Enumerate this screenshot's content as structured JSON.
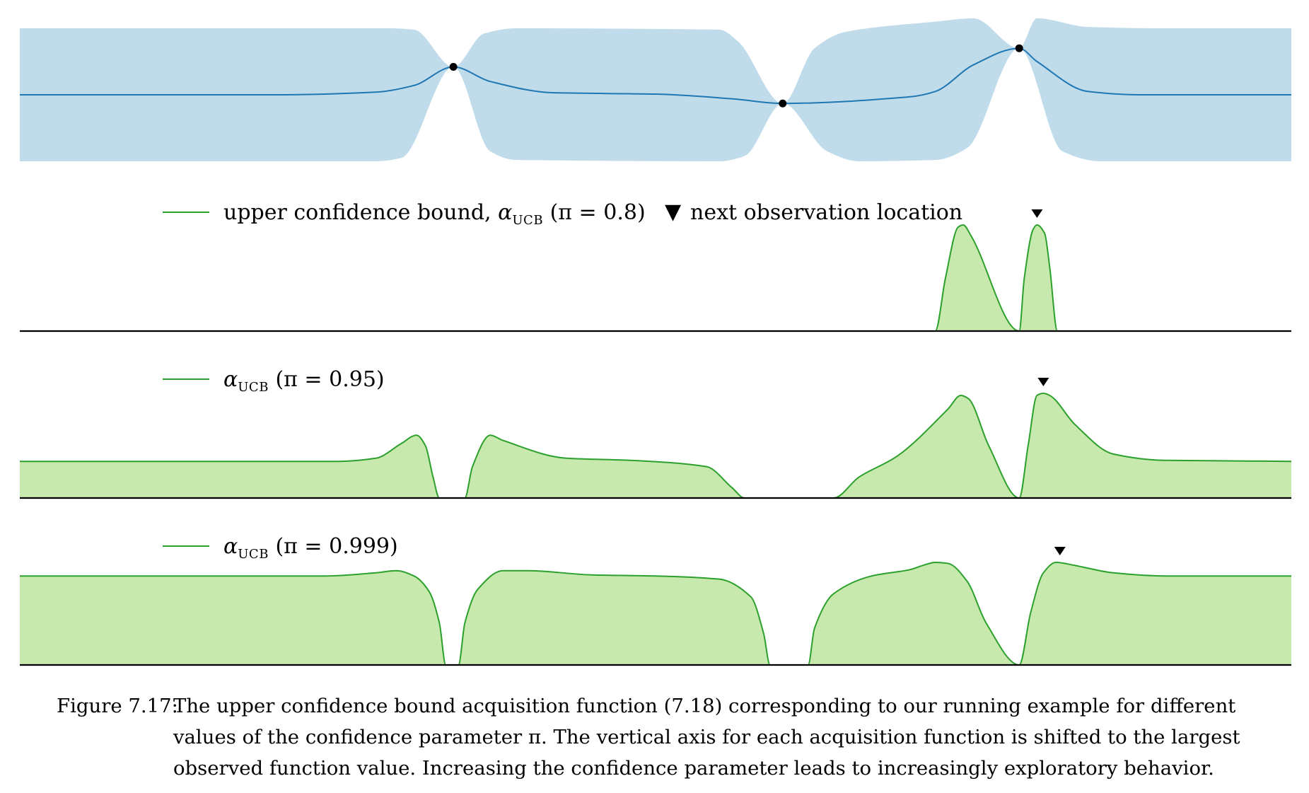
{
  "chart_data": [
    {
      "type": "area",
      "panel": "gaussian-process-posterior",
      "x_range": [
        0,
        1
      ],
      "y_range": [
        -1,
        1
      ],
      "mean_curve": [
        [
          0.0,
          0.0
        ],
        [
          0.2,
          0.0
        ],
        [
          0.28,
          0.04
        ],
        [
          0.31,
          0.14
        ],
        [
          0.341,
          0.42
        ],
        [
          0.37,
          0.2
        ],
        [
          0.42,
          0.03
        ],
        [
          0.5,
          0.01
        ],
        [
          0.56,
          -0.06
        ],
        [
          0.6,
          -0.13
        ],
        [
          0.7,
          -0.03
        ],
        [
          0.72,
          0.05
        ],
        [
          0.75,
          0.45
        ],
        [
          0.786,
          0.7
        ],
        [
          0.8,
          0.5
        ],
        [
          0.84,
          0.05
        ],
        [
          0.88,
          0.0
        ],
        [
          1.0,
          0.0
        ]
      ],
      "band_upper": [
        [
          0.0,
          1.0
        ],
        [
          0.29,
          1.0
        ],
        [
          0.31,
          0.98
        ],
        [
          0.341,
          0.42
        ],
        [
          0.365,
          0.92
        ],
        [
          0.39,
          1.0
        ],
        [
          0.55,
          0.98
        ],
        [
          0.565,
          0.8
        ],
        [
          0.6,
          -0.13
        ],
        [
          0.625,
          0.7
        ],
        [
          0.65,
          0.95
        ],
        [
          0.72,
          1.1
        ],
        [
          0.75,
          1.15
        ],
        [
          0.786,
          0.7
        ],
        [
          0.8,
          1.15
        ],
        [
          0.84,
          1.02
        ],
        [
          0.9,
          1.0
        ],
        [
          1.0,
          1.0
        ]
      ],
      "band_lower": [
        [
          0.0,
          -1.0
        ],
        [
          0.28,
          -1.0
        ],
        [
          0.3,
          -0.95
        ],
        [
          0.341,
          0.42
        ],
        [
          0.37,
          -0.85
        ],
        [
          0.39,
          -0.98
        ],
        [
          0.55,
          -1.0
        ],
        [
          0.57,
          -0.92
        ],
        [
          0.6,
          -0.13
        ],
        [
          0.635,
          -0.85
        ],
        [
          0.66,
          -1.0
        ],
        [
          0.72,
          -0.98
        ],
        [
          0.745,
          -0.8
        ],
        [
          0.786,
          0.7
        ],
        [
          0.82,
          -0.85
        ],
        [
          0.85,
          -1.0
        ],
        [
          1.0,
          -1.0
        ]
      ],
      "observations": [
        [
          0.341,
          0.42
        ],
        [
          0.6,
          -0.13
        ],
        [
          0.786,
          0.7
        ]
      ],
      "colors": {
        "band": "#c0dcea",
        "mean": "#1f77b4",
        "points": "#000000"
      }
    },
    {
      "type": "area",
      "panel": "ucb-pi-0.8",
      "x_range": [
        0,
        1
      ],
      "y_range": [
        0,
        1
      ],
      "legend": [
        {
          "kind": "line",
          "text": "upper confidence bound, ",
          "math_symbol": "α",
          "math_sub": "UCB",
          "math_tail": " (π = 0.8)"
        },
        {
          "kind": "marker",
          "marker": "▼",
          "text": "next observation location"
        }
      ],
      "curve": [
        [
          0.0,
          0
        ],
        [
          0.72,
          0
        ],
        [
          0.728,
          0.5
        ],
        [
          0.738,
          0.98
        ],
        [
          0.742,
          1.0
        ],
        [
          0.748,
          0.9
        ],
        [
          0.786,
          0
        ],
        [
          0.79,
          0.5
        ],
        [
          0.797,
          0.96
        ],
        [
          0.8,
          1.0
        ],
        [
          0.806,
          0.92
        ],
        [
          0.81,
          0.6
        ],
        [
          0.816,
          0
        ],
        [
          1.0,
          0
        ]
      ],
      "next_observation": 0.8,
      "colors": {
        "fill": "#c7e9ad",
        "line": "#2ca02c",
        "marker": "#000000"
      }
    },
    {
      "type": "area",
      "panel": "ucb-pi-0.95",
      "x_range": [
        0,
        1
      ],
      "y_range": [
        0,
        1
      ],
      "legend": [
        {
          "kind": "line",
          "text": "",
          "math_symbol": "α",
          "math_sub": "UCB",
          "math_tail": " (π = 0.95)"
        }
      ],
      "curve": [
        [
          0.0,
          0.35
        ],
        [
          0.25,
          0.35
        ],
        [
          0.28,
          0.38
        ],
        [
          0.3,
          0.52
        ],
        [
          0.312,
          0.6
        ],
        [
          0.319,
          0.5
        ],
        [
          0.325,
          0.2
        ],
        [
          0.33,
          0
        ],
        [
          0.35,
          0
        ],
        [
          0.356,
          0.3
        ],
        [
          0.37,
          0.6
        ],
        [
          0.38,
          0.55
        ],
        [
          0.43,
          0.38
        ],
        [
          0.48,
          0.36
        ],
        [
          0.54,
          0.3
        ],
        [
          0.56,
          0.1
        ],
        [
          0.57,
          0
        ],
        [
          0.64,
          0
        ],
        [
          0.66,
          0.2
        ],
        [
          0.69,
          0.4
        ],
        [
          0.73,
          0.85
        ],
        [
          0.74,
          0.98
        ],
        [
          0.746,
          0.95
        ],
        [
          0.762,
          0.5
        ],
        [
          0.786,
          0
        ],
        [
          0.793,
          0.5
        ],
        [
          0.8,
          0.98
        ],
        [
          0.805,
          1.0
        ],
        [
          0.81,
          0.98
        ],
        [
          0.83,
          0.7
        ],
        [
          0.86,
          0.42
        ],
        [
          0.9,
          0.36
        ],
        [
          1.0,
          0.35
        ]
      ],
      "next_observation": 0.805,
      "colors": {
        "fill": "#c7e9ad",
        "line": "#2ca02c",
        "marker": "#000000"
      }
    },
    {
      "type": "area",
      "panel": "ucb-pi-0.999",
      "x_range": [
        0,
        1
      ],
      "y_range": [
        0,
        1
      ],
      "legend": [
        {
          "kind": "line",
          "text": "",
          "math_symbol": "α",
          "math_sub": "UCB",
          "math_tail": " (π = 0.999)"
        }
      ],
      "curve": [
        [
          0.0,
          0.85
        ],
        [
          0.24,
          0.85
        ],
        [
          0.28,
          0.88
        ],
        [
          0.296,
          0.9
        ],
        [
          0.31,
          0.85
        ],
        [
          0.322,
          0.7
        ],
        [
          0.33,
          0.4
        ],
        [
          0.335,
          0
        ],
        [
          0.345,
          0
        ],
        [
          0.35,
          0.4
        ],
        [
          0.36,
          0.72
        ],
        [
          0.38,
          0.9
        ],
        [
          0.4,
          0.9
        ],
        [
          0.45,
          0.86
        ],
        [
          0.5,
          0.85
        ],
        [
          0.55,
          0.82
        ],
        [
          0.575,
          0.65
        ],
        [
          0.585,
          0.3
        ],
        [
          0.59,
          0
        ],
        [
          0.62,
          0
        ],
        [
          0.625,
          0.35
        ],
        [
          0.64,
          0.68
        ],
        [
          0.67,
          0.85
        ],
        [
          0.7,
          0.91
        ],
        [
          0.71,
          0.95
        ],
        [
          0.72,
          0.98
        ],
        [
          0.73,
          0.97
        ],
        [
          0.745,
          0.8
        ],
        [
          0.76,
          0.4
        ],
        [
          0.786,
          0
        ],
        [
          0.795,
          0.5
        ],
        [
          0.805,
          0.88
        ],
        [
          0.815,
          0.98
        ],
        [
          0.83,
          0.95
        ],
        [
          0.86,
          0.88
        ],
        [
          0.9,
          0.85
        ],
        [
          1.0,
          0.85
        ]
      ],
      "next_observation": 0.818,
      "colors": {
        "fill": "#c7e9ad",
        "line": "#2ca02c",
        "marker": "#000000"
      }
    }
  ],
  "caption": {
    "label": "Figure 7.17:",
    "lines": [
      "The upper confidence bound acquisition function (7.18) corresponding to our running example for different",
      "values of the confidence parameter π. The vertical axis for each acquisition function is shifted to the largest",
      "observed function value. Increasing the confidence parameter leads to increasingly exploratory behavior."
    ]
  }
}
